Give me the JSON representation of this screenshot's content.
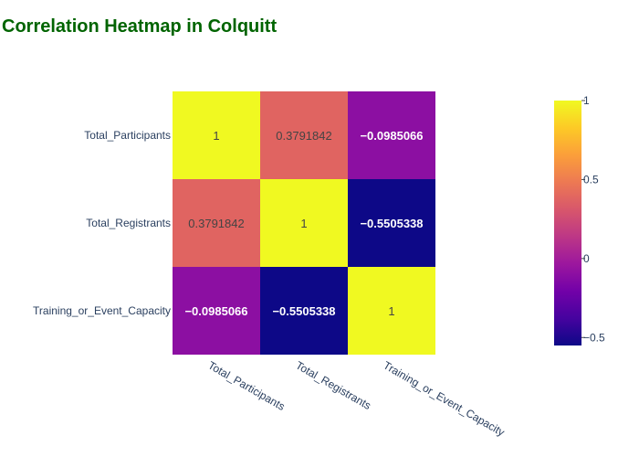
{
  "chart_data": {
    "type": "heatmap",
    "title": "Correlation Heatmap in Colquitt",
    "x": [
      "Total_Participants",
      "Total_Registrants",
      "Training_or_Event_Capacity"
    ],
    "y": [
      "Total_Participants",
      "Total_Registrants",
      "Training_or_Event_Capacity"
    ],
    "z": [
      [
        1,
        0.3791842,
        -0.0985066
      ],
      [
        0.3791842,
        1,
        -0.5505338
      ],
      [
        -0.0985066,
        -0.5505338,
        1
      ]
    ],
    "z_text": [
      [
        "1",
        "0.3791842",
        "−0.0985066"
      ],
      [
        "0.3791842",
        "1",
        "−0.5505338"
      ],
      [
        "−0.0985066",
        "−0.5505338",
        "1"
      ]
    ],
    "colorscale": "plasma",
    "zlim": [
      -0.5505338,
      1
    ],
    "colorbar": {
      "tick_values": [
        1,
        0.5,
        0,
        -0.5
      ],
      "tick_labels": [
        "1",
        "0.5",
        "0",
        "−0.5"
      ]
    }
  }
}
